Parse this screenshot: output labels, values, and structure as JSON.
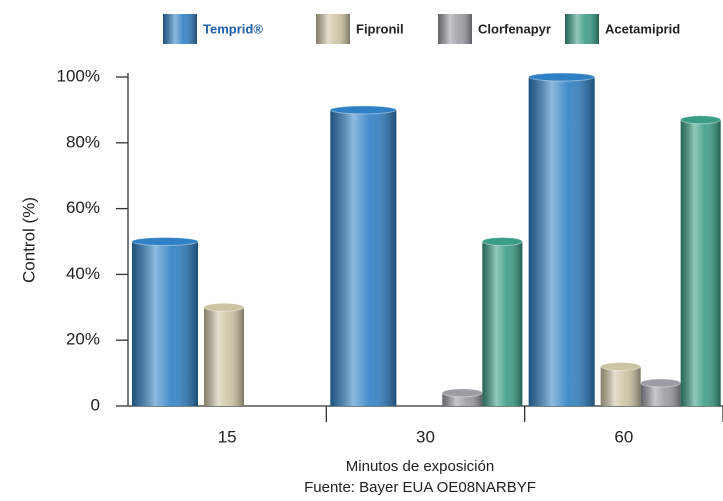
{
  "chart_data": {
    "type": "bar",
    "categories": [
      "15",
      "30",
      "60"
    ],
    "series": [
      {
        "name": "Temprid®",
        "color": "#2f80c4",
        "values": [
          50,
          90,
          100
        ]
      },
      {
        "name": "Fipronil",
        "color": "#cdc4a3",
        "values": [
          30,
          0,
          12
        ]
      },
      {
        "name": "Clorfenapyr",
        "color": "#9c9ca2",
        "values": [
          0,
          4,
          7
        ]
      },
      {
        "name": "Acetamiprid",
        "color": "#3a9d86",
        "values": [
          0,
          50,
          87
        ]
      }
    ],
    "y_label": "Control (%)",
    "x_label": "Minutos de exposición",
    "source": "Fuente: Bayer EUA OE08NARBYF",
    "ylim": [
      0,
      100
    ],
    "yticks": [
      0,
      {
        "value": 20,
        "label": "20%"
      },
      {
        "value": 40,
        "label": "40%"
      },
      {
        "value": 60,
        "label": "60%"
      },
      {
        "value": 80,
        "label": "80%"
      },
      {
        "value": 100,
        "label": "100%"
      }
    ],
    "legend": "top"
  }
}
